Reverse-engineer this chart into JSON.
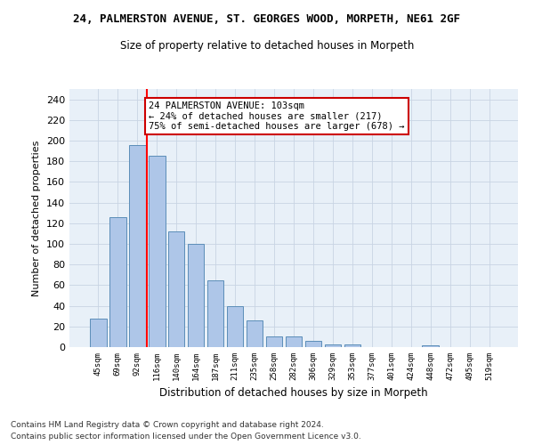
{
  "title1": "24, PALMERSTON AVENUE, ST. GEORGES WOOD, MORPETH, NE61 2GF",
  "title2": "Size of property relative to detached houses in Morpeth",
  "xlabel": "Distribution of detached houses by size in Morpeth",
  "ylabel": "Number of detached properties",
  "bar_labels": [
    "45sqm",
    "69sqm",
    "92sqm",
    "116sqm",
    "140sqm",
    "164sqm",
    "187sqm",
    "211sqm",
    "235sqm",
    "258sqm",
    "282sqm",
    "306sqm",
    "329sqm",
    "353sqm",
    "377sqm",
    "401sqm",
    "424sqm",
    "448sqm",
    "472sqm",
    "495sqm",
    "519sqm"
  ],
  "bar_values": [
    28,
    126,
    196,
    185,
    112,
    100,
    65,
    40,
    26,
    10,
    10,
    6,
    3,
    3,
    0,
    0,
    0,
    2,
    0,
    0,
    0
  ],
  "bar_color": "#aec6e8",
  "bar_edge_color": "#5b8db8",
  "grid_color": "#c8d4e3",
  "bg_color": "#e8f0f8",
  "red_line_x": 2,
  "annotation_text": "24 PALMERSTON AVENUE: 103sqm\n← 24% of detached houses are smaller (217)\n75% of semi-detached houses are larger (678) →",
  "annotation_box_color": "#ffffff",
  "annotation_box_edge": "#cc0000",
  "ylim": [
    0,
    250
  ],
  "yticks": [
    0,
    20,
    40,
    60,
    80,
    100,
    120,
    140,
    160,
    180,
    200,
    220,
    240
  ],
  "footnote1": "Contains HM Land Registry data © Crown copyright and database right 2024.",
  "footnote2": "Contains public sector information licensed under the Open Government Licence v3.0."
}
